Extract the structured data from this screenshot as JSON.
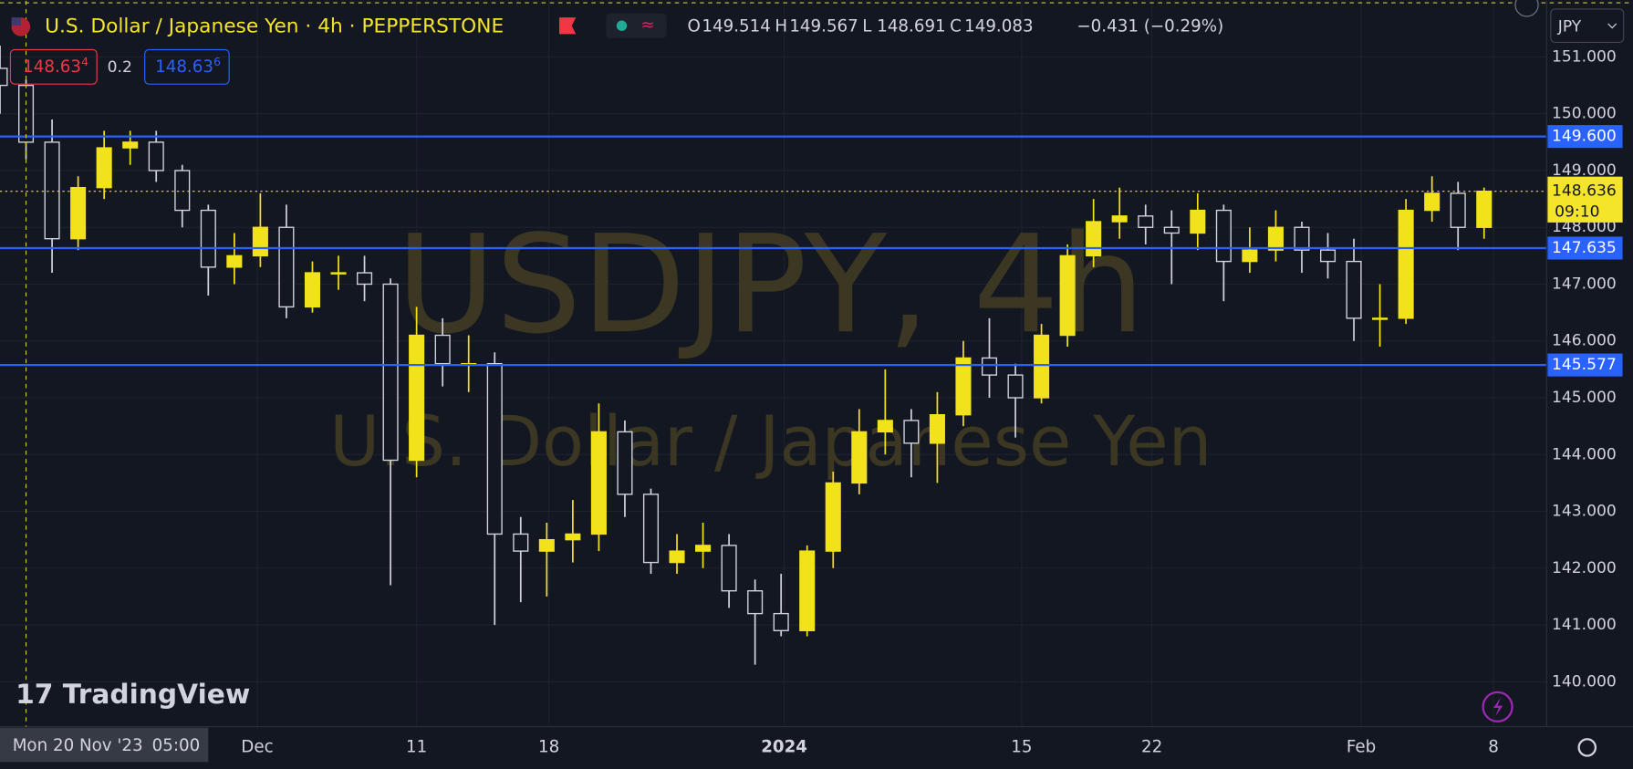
{
  "ui": {
    "symbol_title": "U.S. Dollar / Japanese Yen · 4h · PEPPERSTONE",
    "ohlc": [
      {
        "key": "O",
        "value": "149.514"
      },
      {
        "key": "H",
        "value": "149.567"
      },
      {
        "key": "L",
        "value": "148.691"
      },
      {
        "key": "C",
        "value": "149.083"
      }
    ],
    "change": "−0.431 (−0.29%)",
    "sell": {
      "main": "148.63",
      "pip": "4"
    },
    "spread": "0.2",
    "buy": {
      "main": "148.63",
      "pip": "6"
    },
    "watermark_title": "USDJPY, 4h",
    "watermark_subtitle": "U.S. Dollar / Japanese Yen",
    "brand": "TradingView",
    "currency": "JPY",
    "crosshair_date": "Mon 20 Nov '23",
    "crosshair_time": "05:00"
  },
  "chart_data": {
    "type": "candlestick",
    "x": [
      -1,
      0,
      1,
      2,
      3,
      4,
      5,
      6,
      7,
      8,
      9,
      10,
      11,
      12,
      13,
      14,
      15,
      16,
      17,
      18,
      19,
      20,
      21,
      22,
      23,
      24,
      25,
      26,
      27,
      28,
      29,
      30,
      31,
      32,
      33,
      34,
      35,
      36,
      37,
      38,
      39,
      40,
      41,
      42,
      43,
      44,
      45,
      46,
      47,
      48,
      49,
      50,
      51,
      52,
      53,
      54,
      55,
      56
    ],
    "open": [
      150.8,
      150.5,
      149.5,
      147.8,
      148.7,
      149.4,
      149.5,
      149.0,
      148.3,
      147.3,
      147.5,
      148.0,
      146.6,
      147.2,
      147.2,
      147.0,
      143.9,
      146.1,
      145.6,
      145.6,
      142.6,
      142.3,
      142.5,
      142.6,
      144.4,
      143.3,
      142.1,
      142.3,
      142.4,
      141.6,
      141.2,
      140.9,
      142.3,
      143.5,
      144.4,
      144.6,
      144.2,
      144.7,
      145.7,
      145.4,
      145.0,
      146.1,
      147.5,
      148.1,
      148.2,
      148.0,
      147.9,
      148.3,
      147.4,
      147.6,
      148.0,
      147.6,
      147.4,
      146.4,
      146.4,
      148.3,
      148.6,
      148.0
    ],
    "high": [
      151.2,
      150.6,
      149.9,
      148.9,
      149.7,
      149.7,
      149.7,
      149.1,
      148.4,
      147.9,
      148.6,
      148.4,
      147.4,
      147.5,
      147.5,
      147.1,
      146.6,
      146.4,
      146.1,
      145.8,
      142.9,
      142.8,
      143.2,
      144.9,
      144.6,
      143.4,
      142.6,
      142.8,
      142.6,
      141.8,
      141.9,
      142.4,
      143.7,
      144.8,
      145.5,
      144.8,
      145.1,
      146.0,
      146.4,
      145.6,
      146.3,
      147.7,
      148.5,
      148.7,
      148.4,
      148.3,
      148.6,
      148.4,
      148.0,
      148.3,
      148.1,
      147.9,
      147.8,
      147.0,
      148.5,
      148.9,
      148.8,
      148.7
    ],
    "low": [
      150.0,
      149.2,
      147.2,
      147.6,
      148.5,
      149.1,
      148.8,
      148.0,
      146.8,
      147.0,
      147.3,
      146.4,
      146.5,
      146.9,
      146.7,
      141.7,
      143.6,
      145.2,
      145.1,
      141.0,
      141.4,
      141.5,
      142.1,
      142.3,
      142.9,
      141.9,
      141.9,
      142.0,
      141.3,
      140.3,
      140.8,
      140.8,
      142.0,
      143.3,
      144.0,
      143.6,
      143.5,
      144.5,
      145.0,
      144.3,
      144.9,
      145.9,
      147.3,
      147.8,
      147.7,
      147.0,
      147.6,
      146.7,
      147.2,
      147.4,
      147.2,
      147.1,
      146.0,
      145.9,
      146.3,
      148.1,
      147.6,
      147.8
    ],
    "close": [
      150.5,
      149.5,
      147.8,
      148.7,
      149.4,
      149.5,
      149.0,
      148.3,
      147.3,
      147.5,
      148.0,
      146.6,
      147.2,
      147.2,
      147.0,
      143.9,
      146.1,
      145.6,
      145.6,
      142.6,
      142.3,
      142.5,
      142.6,
      144.4,
      143.3,
      142.1,
      142.3,
      142.4,
      141.6,
      141.2,
      140.9,
      142.3,
      143.5,
      144.4,
      144.6,
      144.2,
      144.7,
      145.7,
      145.4,
      145.0,
      146.1,
      147.5,
      148.1,
      148.2,
      148.0,
      147.9,
      148.3,
      147.4,
      147.6,
      148.0,
      147.6,
      147.4,
      146.4,
      146.4,
      148.3,
      148.6,
      148.0,
      148.636
    ],
    "up_color": "#f2e21b",
    "down_color": "#d1d4dc",
    "xlim": [
      -1,
      58.4
    ],
    "xticks": [
      {
        "value": 8.88,
        "label": "Dec"
      },
      {
        "value": 15,
        "label": "11"
      },
      {
        "value": 20.08,
        "label": "18"
      },
      {
        "value": 29.12,
        "label": "2024"
      },
      {
        "value": 38.24,
        "label": "15"
      },
      {
        "value": 43.24,
        "label": "22"
      },
      {
        "value": 51.28,
        "label": "Feb"
      },
      {
        "value": 56.36,
        "label": "8"
      }
    ],
    "ylim": [
      139.21,
      151.99
    ],
    "yticks": [
      {
        "value": 140,
        "label": "140.000"
      },
      {
        "value": 141,
        "label": "141.000"
      },
      {
        "value": 142,
        "label": "142.000"
      },
      {
        "value": 143,
        "label": "143.000"
      },
      {
        "value": 144,
        "label": "144.000"
      },
      {
        "value": 145,
        "label": "145.000"
      },
      {
        "value": 146,
        "label": "146.000"
      },
      {
        "value": 147,
        "label": "147.000"
      },
      {
        "value": 148,
        "label": "148.000"
      },
      {
        "value": 149,
        "label": "149.000"
      },
      {
        "value": 150,
        "label": "150.000"
      },
      {
        "value": 151,
        "label": "151.000"
      }
    ],
    "grid": true,
    "levels": [
      {
        "value": 149.6,
        "label": "149.600"
      },
      {
        "value": 147.635,
        "label": "147.635"
      },
      {
        "value": 145.577,
        "label": "145.577"
      }
    ],
    "level_color": "#2962ff",
    "last_price": {
      "value": 148.636,
      "label": "148.636"
    },
    "countdown": "09:10",
    "last_color": "#f5e52a"
  }
}
